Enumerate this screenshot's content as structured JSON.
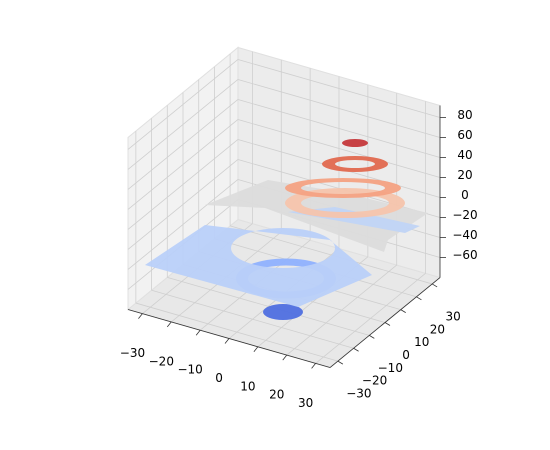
{
  "chart_data": {
    "type": "contour3d",
    "xlim": [
      -35,
      35
    ],
    "ylim": [
      -35,
      35
    ],
    "zlim": [
      -80,
      92
    ],
    "xticks": [
      {
        "value": -30,
        "label": "−30"
      },
      {
        "value": -20,
        "label": "−20"
      },
      {
        "value": -10,
        "label": "−10"
      },
      0,
      10,
      20,
      30
    ],
    "yticks": [
      {
        "value": -30,
        "label": "−30"
      },
      {
        "value": -20,
        "label": "−20"
      },
      {
        "value": -10,
        "label": "−10"
      },
      0,
      10,
      20,
      30
    ],
    "zticks": [
      {
        "value": -60,
        "label": "−60"
      },
      {
        "value": -40,
        "label": "−40"
      },
      {
        "value": -20,
        "label": "−20"
      },
      0,
      20,
      40,
      60,
      80
    ],
    "grid": true,
    "levels": [
      {
        "z": -75,
        "color": "#4f6fe0"
      },
      {
        "z": -55,
        "color": "#8fb1fe"
      },
      {
        "z": -35,
        "color": "#b9d0f9"
      },
      {
        "z": 0,
        "color": "#dcdcdc"
      },
      {
        "z": -8,
        "color": "#c0d4f5"
      },
      {
        "z": 15,
        "color": "#f5c4ac"
      },
      {
        "z": 35,
        "color": "#f4a283"
      },
      {
        "z": 55,
        "color": "#e2694f"
      },
      {
        "z": 75,
        "color": "#c5383b"
      }
    ]
  }
}
